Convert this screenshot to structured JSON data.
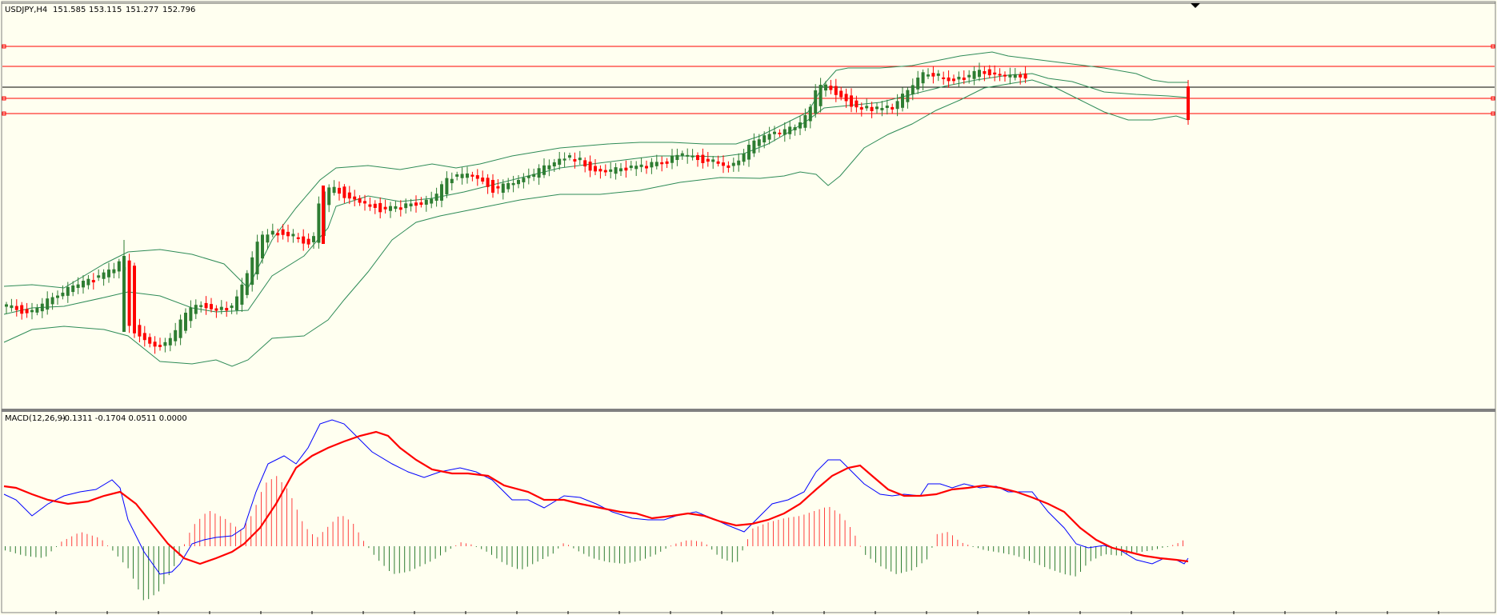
{
  "main_panel": {
    "header_symbol": "USDJPY,H4",
    "header_open": "151.585",
    "header_high": "153.115",
    "header_low": "151.277",
    "header_close": "152.796"
  },
  "macd_panel": {
    "header_name": "MACD(12,26,9)",
    "header_values": "-0.1311 -0.1704 0.0511 0.0000"
  },
  "colors": {
    "background": "#fffff0",
    "bull": "#2e7d32",
    "bear": "#ff0000",
    "bands": "#2e8b57",
    "macd_line": "#0000ff",
    "signal_line": "#ff0000",
    "hist_pos": "#ff4040",
    "hist_neg": "#2e7d32",
    "hlines": "#ff0000"
  },
  "chart_data": {
    "type": "candlestick",
    "symbol": "USDJPY",
    "timeframe": "H4",
    "last_bar_ohlc": {
      "open": 151.585,
      "high": 153.115,
      "low": 151.277,
      "close": 152.796
    },
    "indicators": [
      "Bollinger Bands",
      "MACD(12,26,9)"
    ],
    "macd_values": {
      "main": -0.1311,
      "signal": -0.1704,
      "value3": 0.0511,
      "value4": 0.0
    },
    "horizontal_lines": 5,
    "grid": false
  }
}
